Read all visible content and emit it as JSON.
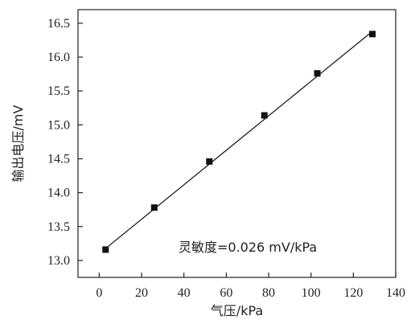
{
  "chart_data": {
    "type": "scatter",
    "title": "",
    "xlabel": "气压/kPa",
    "ylabel": "输出电压/mV",
    "xlim": [
      -10,
      140
    ],
    "ylim": [
      12.75,
      16.7
    ],
    "x_ticks": [
      0,
      20,
      40,
      60,
      80,
      100,
      120,
      140
    ],
    "y_ticks": [
      13.0,
      13.5,
      14.0,
      14.5,
      15.0,
      15.5,
      16.0,
      16.5
    ],
    "y_tick_labels": [
      "13.0",
      "13.5",
      "14.0",
      "14.5",
      "15.0",
      "15.5",
      "16.0",
      "16.5"
    ],
    "grid": false,
    "legend": "none",
    "series": [
      {
        "marker": "square",
        "color": "#111111",
        "x": [
          3,
          26,
          52,
          78,
          103,
          129
        ],
        "y": [
          13.16,
          13.78,
          14.46,
          15.14,
          15.76,
          16.34
        ]
      }
    ],
    "fit_line": {
      "x": [
        2,
        129
      ],
      "y": [
        13.15,
        16.38
      ],
      "color": "#111111"
    },
    "annotation": "灵敏度=0.026 mV/kPa"
  }
}
